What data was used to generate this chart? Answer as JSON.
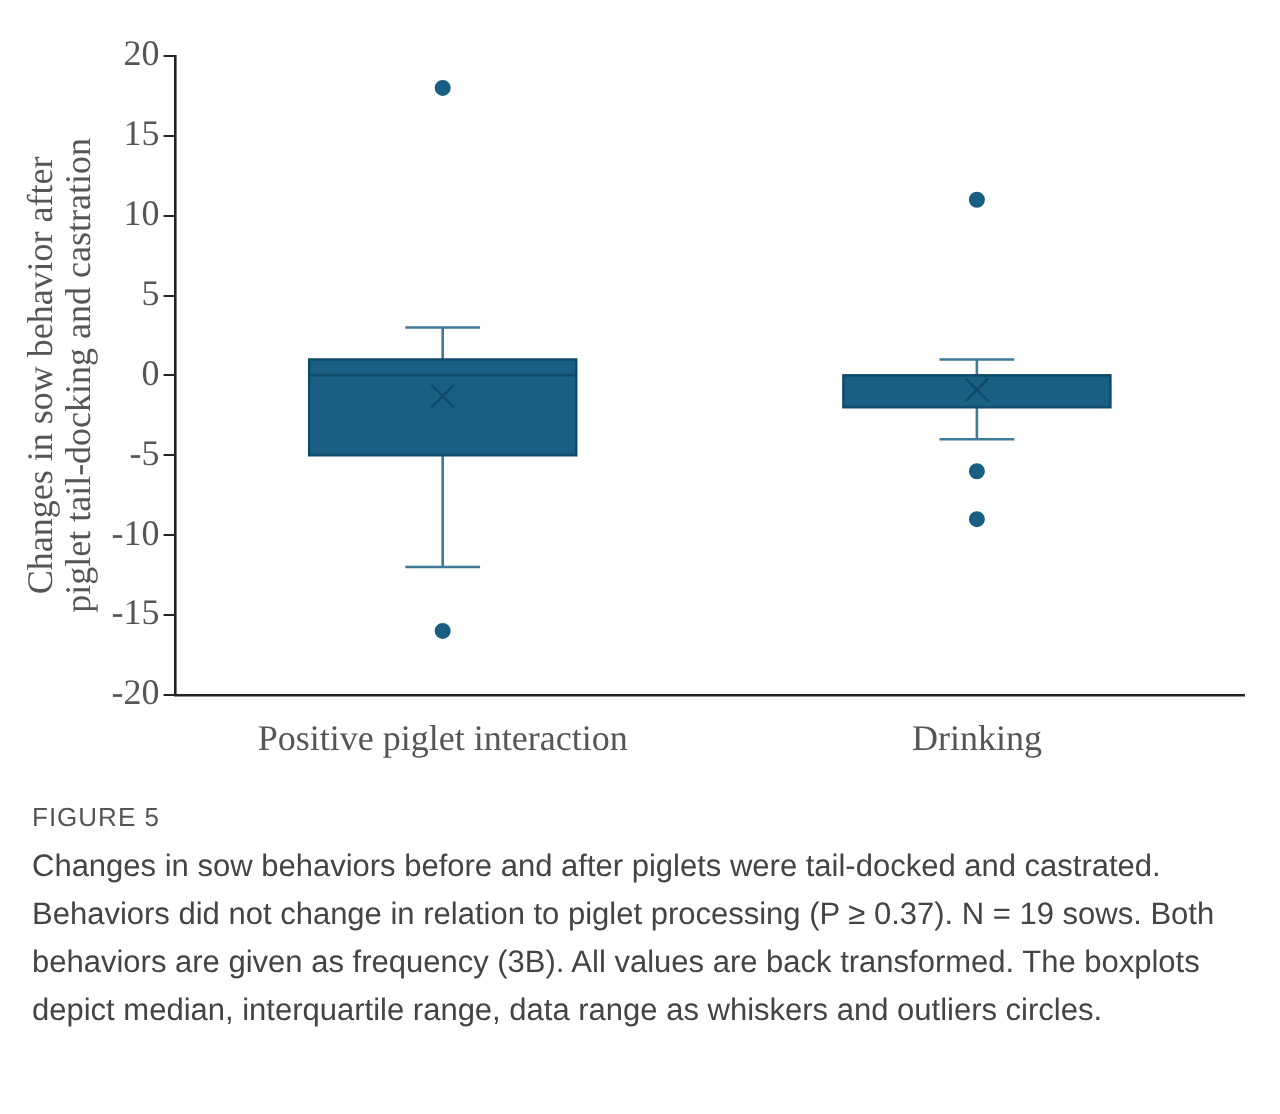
{
  "chart_data": {
    "type": "box",
    "ylabel": "Changes in sow behavior after piglet tail-docking and castration",
    "categories": [
      "Positive piglet interaction",
      "Drinking"
    ],
    "color": "#195e83",
    "boxes": [
      {
        "low": -12,
        "q1": -5,
        "median": 0,
        "q3": 1,
        "high": 3,
        "mean": -1.3,
        "outliers": [
          18,
          -16
        ]
      },
      {
        "low": -4,
        "q1": -2,
        "median": 0,
        "q3": 0,
        "high": 1,
        "mean": -0.9,
        "outliers": [
          11,
          -6,
          -9
        ]
      }
    ],
    "ylim": [
      -20,
      20
    ],
    "yticks": [
      -20,
      -15,
      -10,
      -5,
      0,
      5,
      10,
      15,
      20
    ],
    "grid": false,
    "legend": false,
    "annotations": [
      "FIGURE 5",
      "Changes in sow behaviors before and after piglets were tail-docked and castrated. Behaviors did not change in relation to piglet processing (P ≥ 0.37). N = 19 sows. Both behaviors are given as frequency (3B). All values are back transformed. The boxplots depict median, interquartile range, data range as whiskers and outliers circles."
    ]
  }
}
